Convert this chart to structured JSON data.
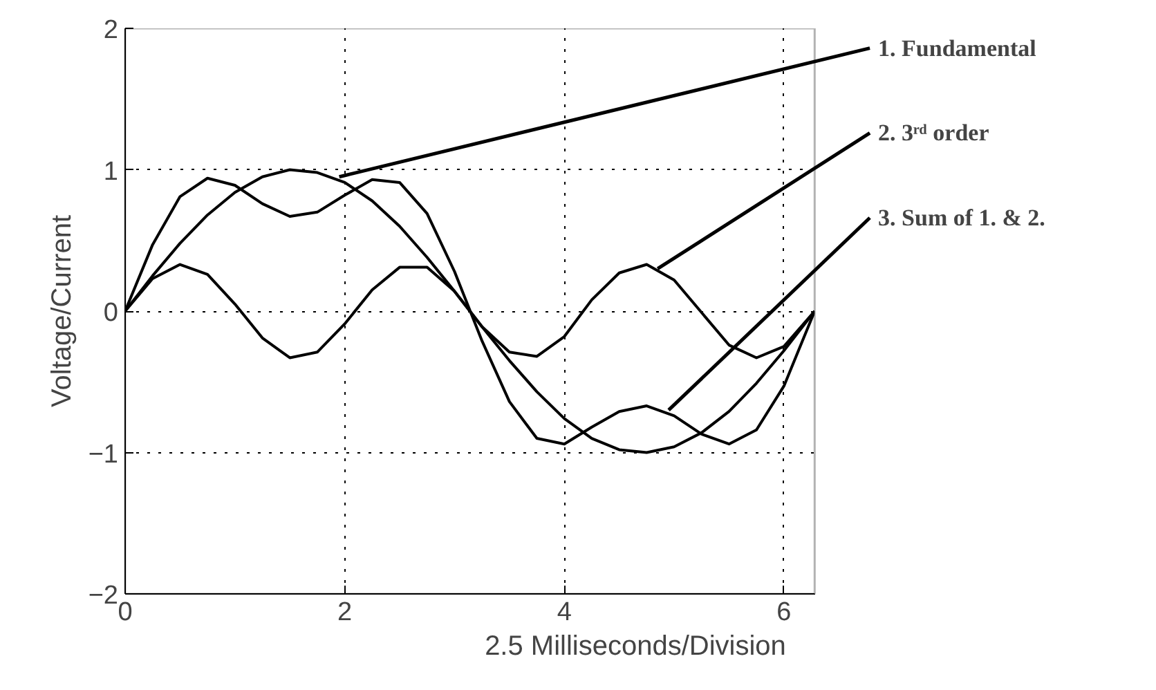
{
  "chart_data": {
    "type": "line",
    "xlabel": "2.5 Milliseconds/Division",
    "ylabel": "Voltage/Current",
    "x": [
      0,
      0.25,
      0.5,
      0.75,
      1,
      1.25,
      1.5,
      1.75,
      2,
      2.25,
      2.5,
      2.75,
      3,
      3.25,
      3.5,
      3.75,
      4,
      4.25,
      4.5,
      4.75,
      5,
      5.25,
      5.5,
      5.75,
      6,
      6.28
    ],
    "series": [
      {
        "color": "#000000",
        "values": [
          0,
          0.25,
          0.48,
          0.68,
          0.84,
          0.95,
          1.0,
          0.98,
          0.91,
          0.78,
          0.6,
          0.38,
          0.14,
          -0.11,
          -0.35,
          -0.57,
          -0.76,
          -0.9,
          -0.98,
          -1.0,
          -0.96,
          -0.86,
          -0.71,
          -0.51,
          -0.28,
          0
        ]
      },
      {
        "color": "#000000",
        "values": [
          0,
          0.23,
          0.33,
          0.26,
          0.05,
          -0.19,
          -0.33,
          -0.29,
          -0.09,
          0.15,
          0.31,
          0.31,
          0.14,
          -0.11,
          -0.29,
          -0.32,
          -0.18,
          0.08,
          0.27,
          0.33,
          0.22,
          -0.01,
          -0.24,
          -0.33,
          -0.25,
          0
        ]
      },
      {
        "color": "#000000",
        "values": [
          0,
          0.47,
          0.81,
          0.94,
          0.89,
          0.76,
          0.67,
          0.7,
          0.82,
          0.93,
          0.91,
          0.69,
          0.28,
          -0.21,
          -0.64,
          -0.9,
          -0.94,
          -0.82,
          -0.71,
          -0.67,
          -0.74,
          -0.87,
          -0.94,
          -0.84,
          -0.53,
          0
        ]
      }
    ],
    "annotations": [
      {
        "text": "1.   Fundamental",
        "x": 1.95,
        "y": 0.95
      },
      {
        "text": "2.   3ʳᵈ order",
        "x": 4.85,
        "y": 0.3
      },
      {
        "text": "3.   Sum of 1. & 2.",
        "x": 4.95,
        "y": -0.7
      }
    ],
    "xlim": [
      0,
      6.28
    ],
    "ylim": [
      -2,
      2
    ],
    "xticks": [
      0,
      2,
      4,
      6
    ],
    "yticks": [
      -2,
      -1,
      0,
      1,
      2
    ],
    "grid": true,
    "line_style": "solid"
  }
}
